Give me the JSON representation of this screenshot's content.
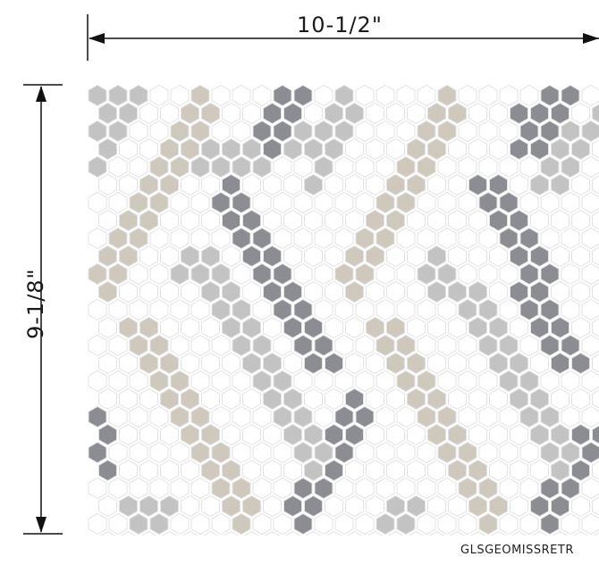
{
  "dimensions": {
    "width_label": "10-1/2\"",
    "height_label": "9-1/8\""
  },
  "product": {
    "sku": "GLSGEOMISSRETR"
  },
  "colors": {
    "white_tile": "#ffffff",
    "grout": "#e3e3e3",
    "dark_gray": "#8c8c93",
    "light_gray": "#c3c3c3",
    "beige": "#cfc8bd",
    "dimension_line": "#111111"
  }
}
